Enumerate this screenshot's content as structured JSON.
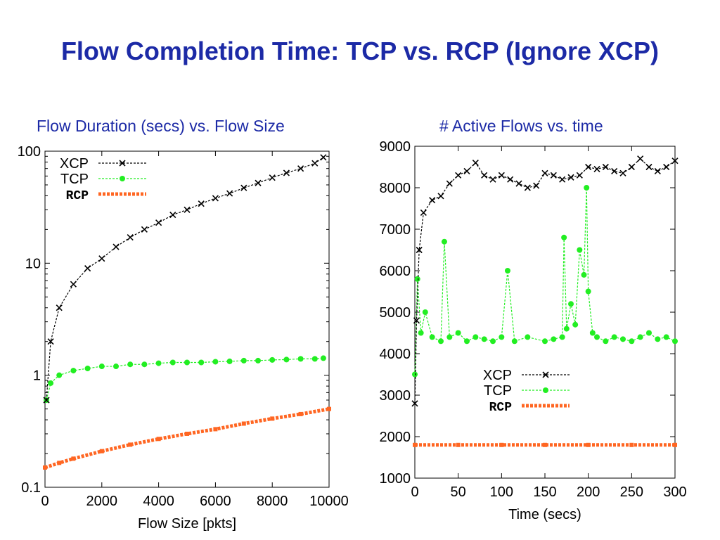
{
  "slide": {
    "title": "Flow Completion Time: TCP vs. RCP (Ignore XCP)"
  },
  "colors": {
    "title": "#1c2aa6",
    "xcp": "#000000",
    "tcp": "#22ee22",
    "rcp": "#ff6622"
  },
  "chart_data": [
    {
      "type": "scatter",
      "title": "Flow Duration (secs) vs. Flow Size",
      "xlabel": "Flow Size [pkts]",
      "ylabel": "",
      "xlim": [
        0,
        10000
      ],
      "ylim": [
        0.1,
        100
      ],
      "yscale": "log",
      "xticks": [
        "0",
        "2000",
        "4000",
        "6000",
        "8000",
        "10000"
      ],
      "xtick_values": [
        0,
        2000,
        4000,
        6000,
        8000,
        10000
      ],
      "yticks": [
        "0.1",
        "1",
        "10",
        "100"
      ],
      "ytick_values": [
        0.1,
        1,
        10,
        100
      ],
      "legend_position": "top-left",
      "series": [
        {
          "name": "XCP",
          "x": [
            50,
            200,
            500,
            1000,
            1500,
            2000,
            2500,
            3000,
            3500,
            4000,
            4500,
            5000,
            5500,
            6000,
            6500,
            7000,
            7500,
            8000,
            8500,
            9000,
            9500,
            9800
          ],
          "y": [
            0.6,
            2.0,
            4.0,
            6.5,
            9.0,
            11.0,
            14.0,
            17.0,
            20.0,
            23.0,
            27.0,
            30.0,
            34.0,
            38.0,
            42.0,
            47.0,
            52.0,
            58.0,
            64.0,
            70.0,
            78.0,
            88.0
          ]
        },
        {
          "name": "TCP",
          "x": [
            50,
            200,
            500,
            1000,
            1500,
            2000,
            2500,
            3000,
            3500,
            4000,
            4500,
            5000,
            5500,
            6000,
            6500,
            7000,
            7500,
            8000,
            8500,
            9000,
            9500,
            9800
          ],
          "y": [
            0.6,
            0.85,
            1.0,
            1.1,
            1.15,
            1.2,
            1.2,
            1.25,
            1.25,
            1.28,
            1.3,
            1.3,
            1.3,
            1.32,
            1.33,
            1.35,
            1.35,
            1.37,
            1.38,
            1.4,
            1.4,
            1.42
          ]
        },
        {
          "name": "RCP",
          "x": [
            0,
            500,
            1000,
            2000,
            3000,
            4000,
            5000,
            6000,
            7000,
            8000,
            9000,
            10000
          ],
          "y": [
            0.15,
            0.165,
            0.18,
            0.21,
            0.24,
            0.27,
            0.3,
            0.33,
            0.37,
            0.41,
            0.45,
            0.5
          ]
        }
      ]
    },
    {
      "type": "scatter",
      "title": "# Active Flows vs. time",
      "xlabel": "Time (secs)",
      "ylabel": "",
      "xlim": [
        0,
        300
      ],
      "ylim": [
        1000,
        9000
      ],
      "xticks": [
        "0",
        "50",
        "100",
        "150",
        "200",
        "250",
        "300"
      ],
      "xtick_values": [
        0,
        50,
        100,
        150,
        200,
        250,
        300
      ],
      "yticks": [
        "1000",
        "2000",
        "3000",
        "4000",
        "5000",
        "6000",
        "7000",
        "8000",
        "9000"
      ],
      "ytick_values": [
        1000,
        2000,
        3000,
        4000,
        5000,
        6000,
        7000,
        8000,
        9000
      ],
      "legend_position": "bottom-center",
      "series": [
        {
          "name": "XCP",
          "x": [
            0,
            2,
            5,
            10,
            20,
            30,
            40,
            50,
            60,
            70,
            80,
            90,
            100,
            110,
            120,
            130,
            140,
            150,
            160,
            170,
            180,
            190,
            200,
            210,
            220,
            230,
            240,
            250,
            260,
            270,
            280,
            290,
            300
          ],
          "y": [
            2800,
            4800,
            6500,
            7400,
            7700,
            7800,
            8100,
            8300,
            8400,
            8600,
            8300,
            8200,
            8300,
            8200,
            8100,
            8000,
            8050,
            8350,
            8300,
            8200,
            8250,
            8300,
            8500,
            8450,
            8500,
            8400,
            8350,
            8500,
            8700,
            8500,
            8400,
            8500,
            8650
          ]
        },
        {
          "name": "TCP",
          "x": [
            0,
            3,
            7,
            12,
            20,
            30,
            34,
            40,
            50,
            60,
            70,
            80,
            90,
            100,
            107,
            115,
            130,
            150,
            160,
            170,
            172,
            175,
            180,
            185,
            190,
            195,
            198,
            200,
            205,
            210,
            220,
            230,
            240,
            250,
            260,
            270,
            280,
            290,
            300
          ],
          "y": [
            3500,
            5800,
            4500,
            5000,
            4400,
            4300,
            6700,
            4400,
            4500,
            4300,
            4400,
            4350,
            4300,
            4400,
            6000,
            4300,
            4400,
            4300,
            4350,
            4400,
            6800,
            4600,
            5200,
            4700,
            6500,
            5900,
            8000,
            5500,
            4500,
            4400,
            4300,
            4400,
            4350,
            4300,
            4400,
            4500,
            4350,
            4400,
            4300
          ]
        },
        {
          "name": "RCP",
          "x": [
            0,
            50,
            100,
            150,
            200,
            250,
            300
          ],
          "y": [
            1800,
            1800,
            1800,
            1800,
            1800,
            1800,
            1800
          ]
        }
      ]
    }
  ]
}
